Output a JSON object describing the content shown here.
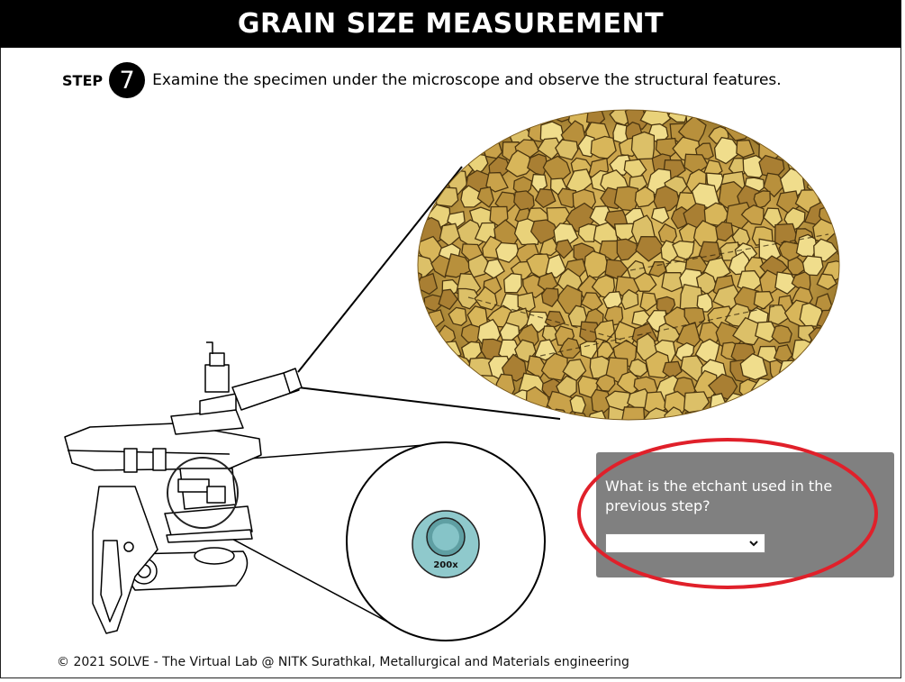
{
  "header": {
    "title": "GRAIN SIZE MEASUREMENT"
  },
  "step": {
    "label": "STEP",
    "number": "7",
    "instruction": "Examine the specimen under the microscope and observe the structural features."
  },
  "objective": {
    "magnification": "200x"
  },
  "quiz": {
    "question": "What is the etchant used in the previous step?",
    "selected_value": ""
  },
  "footer": {
    "text": "© 2021 SOLVE - The Virtual Lab @ NITK Surathkal, Metallurgical and Materials engineering"
  },
  "colors": {
    "title_bg": "#000000",
    "panel_bg": "#808080",
    "highlight_ring": "#e0202a",
    "micrograph_base": "#c9a24a",
    "objective_lens": "#8fc9cc"
  }
}
